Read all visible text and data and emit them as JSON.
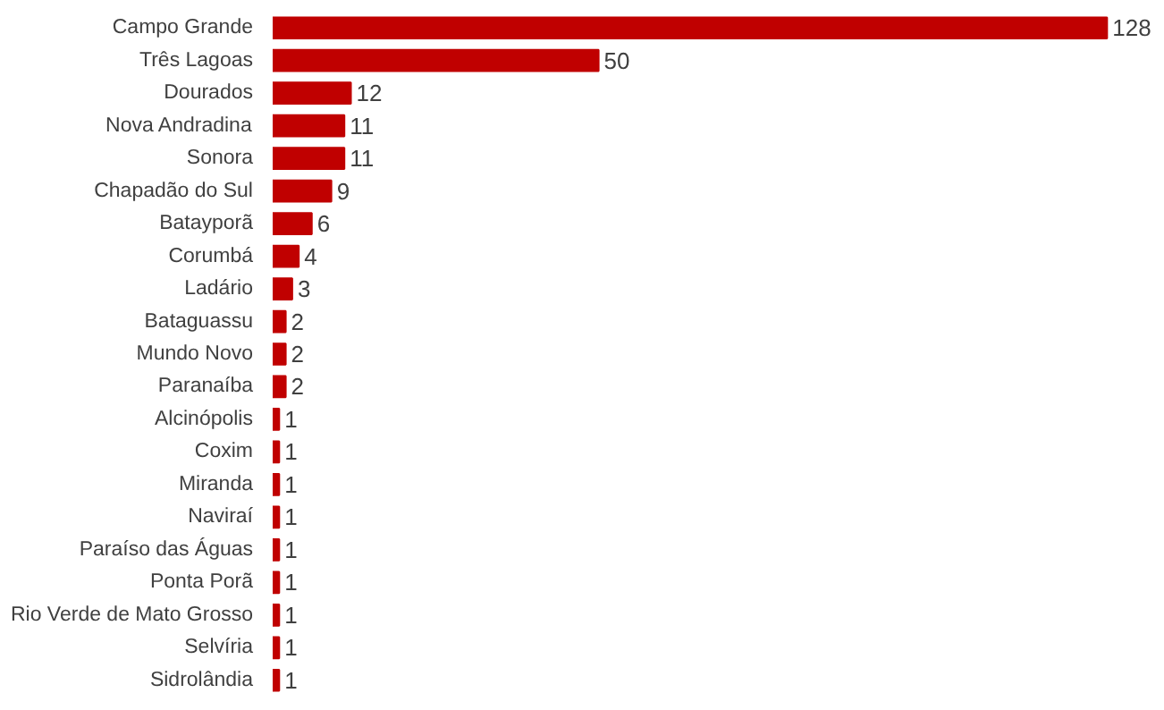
{
  "chart_data": {
    "type": "bar",
    "orientation": "horizontal",
    "data_labels": true,
    "grid": false,
    "color": "#c00000",
    "categories": [
      "Campo Grande",
      "Três Lagoas",
      "Dourados",
      "Nova Andradina",
      "Sonora",
      "Chapadão do Sul",
      "Batayporã",
      "Corumbá",
      "Ladário",
      "Bataguassu",
      "Mundo Novo",
      "Paranaíba",
      "Alcinópolis",
      "Coxim",
      "Miranda",
      "Naviraí",
      "Paraíso das Águas",
      "Ponta Porã",
      "Rio Verde de Mato Grosso",
      "Selvíria",
      "Sidrolândia"
    ],
    "values": [
      128,
      50,
      12,
      11,
      11,
      9,
      6,
      4,
      3,
      2,
      2,
      2,
      1,
      1,
      1,
      1,
      1,
      1,
      1,
      1,
      1
    ]
  }
}
